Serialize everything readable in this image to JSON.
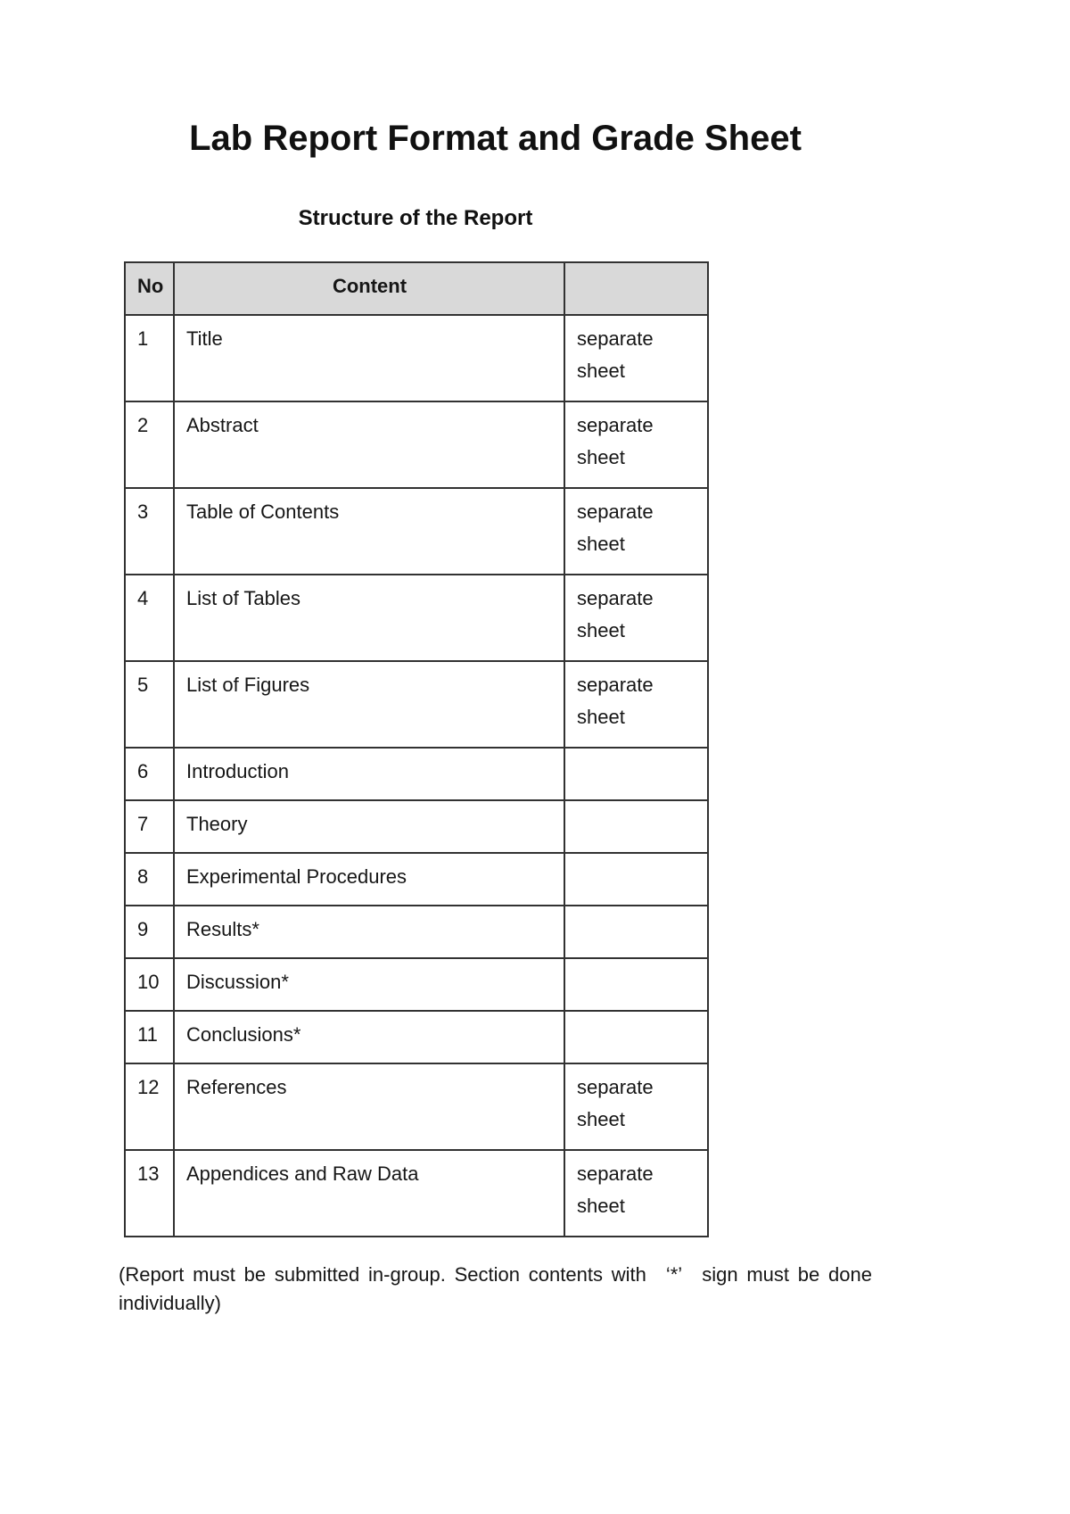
{
  "page": {
    "title": "Lab Report Format and Grade Sheet",
    "subtitle": "Structure of the Report",
    "footer_note": "(Report must be submitted in-group. Section contents with ‘*’ sign must be done individually)"
  },
  "table": {
    "headers": {
      "no": "No",
      "content": "Content",
      "note": ""
    },
    "rows": [
      {
        "no": "1",
        "content": "Title",
        "note": "separate sheet"
      },
      {
        "no": "2",
        "content": "Abstract",
        "note": "separate sheet"
      },
      {
        "no": "3",
        "content": "Table of Contents",
        "note": "separate sheet"
      },
      {
        "no": "4",
        "content": "List of Tables",
        "note": "separate sheet"
      },
      {
        "no": "5",
        "content": "List of Figures",
        "note": "separate sheet"
      },
      {
        "no": "6",
        "content": "Introduction",
        "note": ""
      },
      {
        "no": "7",
        "content": "Theory",
        "note": ""
      },
      {
        "no": "8",
        "content": "Experimental Procedures",
        "note": ""
      },
      {
        "no": "9",
        "content": "Results*",
        "note": ""
      },
      {
        "no": "10",
        "content": "Discussion*",
        "note": ""
      },
      {
        "no": "11",
        "content": "Conclusions*",
        "note": ""
      },
      {
        "no": "12",
        "content": "References",
        "note": "separate sheet"
      },
      {
        "no": "13",
        "content": "Appendices and Raw Data",
        "note": "separate sheet"
      }
    ]
  },
  "colors": {
    "header_bg": "#d9d9d9",
    "border": "#323232",
    "text": "#161616",
    "page_bg": "#ffffff"
  }
}
